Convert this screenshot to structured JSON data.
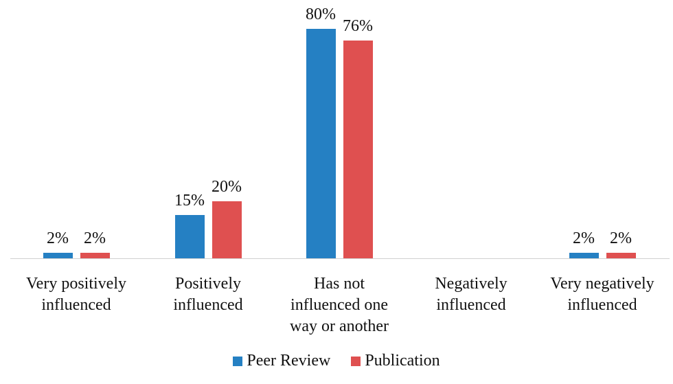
{
  "chart_data": {
    "type": "bar",
    "title": "",
    "xlabel": "",
    "ylabel": "",
    "ylim": [
      0,
      80
    ],
    "grid": false,
    "legend_position": "bottom",
    "categories": [
      "Very positively influenced",
      "Positively influenced",
      "Has not influenced one way or another",
      "Negatively influenced",
      "Very negatively influenced"
    ],
    "category_lines": [
      [
        "Very positively",
        "influenced"
      ],
      [
        "Positively",
        "influenced"
      ],
      [
        "Has not",
        "influenced one",
        "way or another"
      ],
      [
        "Negatively",
        "influenced"
      ],
      [
        "Very negatively",
        "influenced"
      ]
    ],
    "series": [
      {
        "name": "Peer Review",
        "color": "#2580c3",
        "values": [
          2,
          15,
          80,
          0,
          2
        ],
        "labels": [
          "2%",
          "15%",
          "80%",
          "",
          "2%"
        ]
      },
      {
        "name": "Publication",
        "color": "#df5050",
        "values": [
          2,
          20,
          76,
          0,
          2
        ],
        "labels": [
          "2%",
          "20%",
          "76%",
          "",
          "2%"
        ]
      }
    ]
  }
}
